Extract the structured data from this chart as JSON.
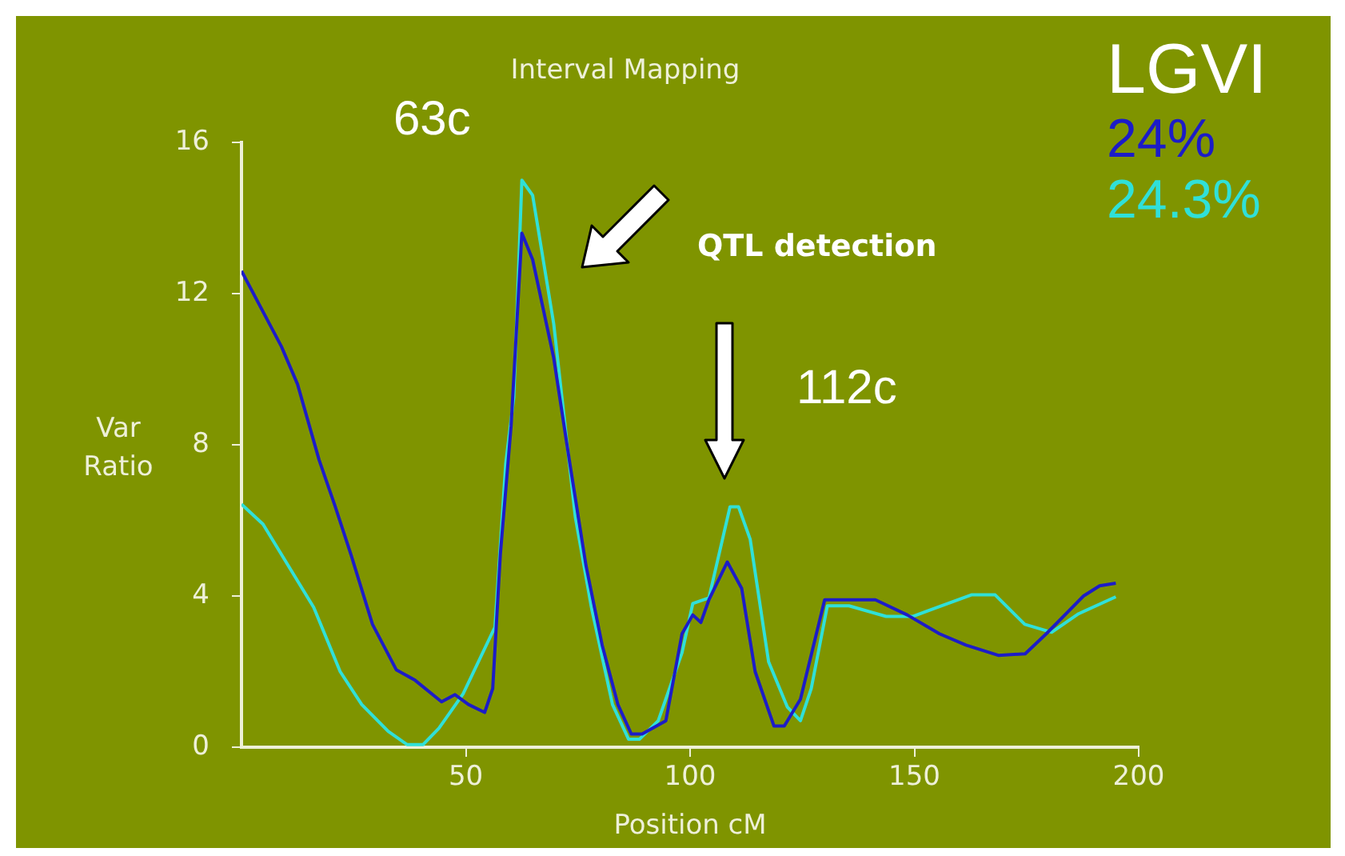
{
  "chart_data": {
    "type": "line",
    "title": "Interval Mapping",
    "xlabel": "Position cM",
    "ylabel": "Var Ratio",
    "legend_title": "LGVI",
    "legend": "top right",
    "annotations": [
      "63c",
      "QTL detection",
      "112c"
    ],
    "xlim": [
      0,
      200
    ],
    "xticks": [
      50,
      100,
      150,
      200
    ],
    "ylim": [
      0,
      16
    ],
    "yticks": [
      0,
      4,
      8,
      12,
      16
    ],
    "grid": false,
    "marker": "none",
    "line_style": "solid",
    "series": [
      {
        "name": "24%",
        "color": "#1c1cc8",
        "x": [
          0,
          8.9,
          12.5,
          17.3,
          20.8,
          24.4,
          29.2,
          34.5,
          38.7,
          44.6,
          47.6,
          50.6,
          54.2,
          56,
          57.7,
          60.1,
          62.5,
          64.9,
          69.6,
          73.2,
          76.8,
          80.4,
          83.9,
          86.9,
          89.3,
          94.6,
          98.2,
          100.6,
          102.4,
          104.2,
          108.3,
          111.5,
          114.5,
          118.7,
          121,
          124.6,
          130,
          141.3,
          148.4,
          155.6,
          161.5,
          168.7,
          174.7,
          179.4,
          187.7,
          191.3,
          194.9
        ],
        "values": [
          12.6,
          10.6,
          9.6,
          7.6,
          6.4,
          5.1,
          3.25,
          2.05,
          1.77,
          1.2,
          1.39,
          1.13,
          0.92,
          1.55,
          5.1,
          8.5,
          13.6,
          12.9,
          10.3,
          7.5,
          4.8,
          2.7,
          1.13,
          0.35,
          0.35,
          0.7,
          3.0,
          3.5,
          3.3,
          3.9,
          4.9,
          4.2,
          2.0,
          0.56,
          0.56,
          1.27,
          3.9,
          3.9,
          3.5,
          3.0,
          2.7,
          2.43,
          2.47,
          3.0,
          4.0,
          4.27,
          4.34
        ]
      },
      {
        "name": "24.3%",
        "color": "#30e0d8",
        "x": [
          0,
          4.8,
          8.9,
          16.1,
          22,
          26.8,
          32.7,
          36.9,
          40.5,
          44,
          49.4,
          56.5,
          58.9,
          60.7,
          62.5,
          64.9,
          69.6,
          74.4,
          78,
          82.7,
          86.3,
          88.7,
          92.9,
          98.2,
          100.6,
          104.2,
          108.9,
          110.8,
          113.4,
          117.5,
          121.7,
          124.6,
          127,
          130.6,
          135.4,
          143.7,
          149.6,
          162.7,
          168,
          174.6,
          180.6,
          186.6,
          194.9
        ],
        "values": [
          6.43,
          5.9,
          5.1,
          3.7,
          2.0,
          1.13,
          0.42,
          0.07,
          0.07,
          0.5,
          1.41,
          3.18,
          7.5,
          9.26,
          15,
          14.6,
          11.2,
          6.1,
          3.7,
          1.13,
          0.21,
          0.21,
          0.7,
          2.5,
          3.8,
          3.95,
          6.36,
          6.36,
          5.5,
          2.26,
          1.06,
          0.7,
          1.55,
          3.74,
          3.74,
          3.46,
          3.46,
          4.03,
          4.03,
          3.25,
          3.04,
          3.53,
          3.98
        ]
      }
    ]
  }
}
